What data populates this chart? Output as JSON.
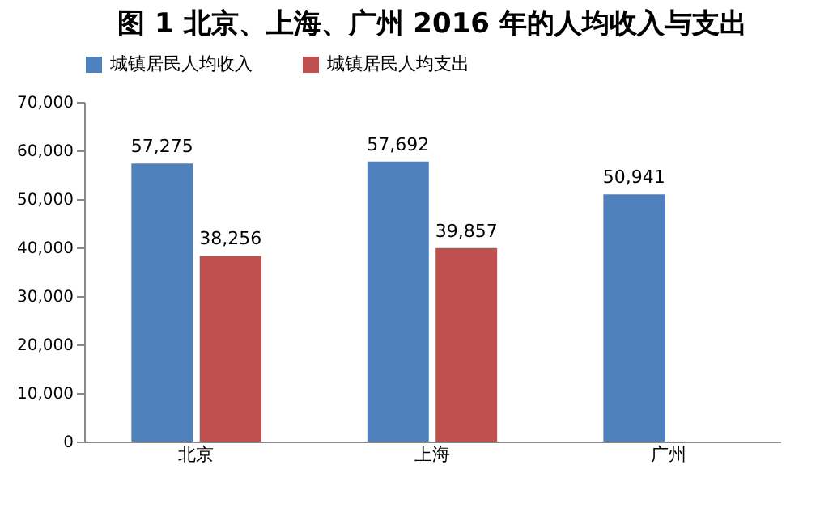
{
  "chart_data": {
    "type": "bar",
    "title": "图 1  北京、上海、广州 2016 年的人均收入与支出",
    "categories": [
      "北京",
      "上海",
      "广州"
    ],
    "series": [
      {
        "name": "城镇居民人均收入",
        "color": "#4f81bd",
        "values": [
          57275,
          57692,
          50941
        ],
        "value_labels": [
          "57,275",
          "57,692",
          "50,941"
        ]
      },
      {
        "name": "城镇居民人均支出",
        "color": "#c0504d",
        "values": [
          38256,
          39857,
          null
        ],
        "value_labels": [
          "38,256",
          "39,857",
          null
        ]
      }
    ],
    "ylim": [
      0,
      70000
    ],
    "yticks": [
      0,
      {
        "value": 10000,
        "label": "10,000"
      },
      {
        "value": 20000,
        "label": "20,000"
      },
      {
        "value": 30000,
        "label": "30,000"
      },
      {
        "value": 40000,
        "label": "40,000"
      },
      {
        "value": 50000,
        "label": "50,000"
      },
      {
        "value": 60000,
        "label": "60,000"
      },
      {
        "value": 70000,
        "label": "70,000"
      }
    ],
    "grid": false,
    "legend": "top"
  }
}
